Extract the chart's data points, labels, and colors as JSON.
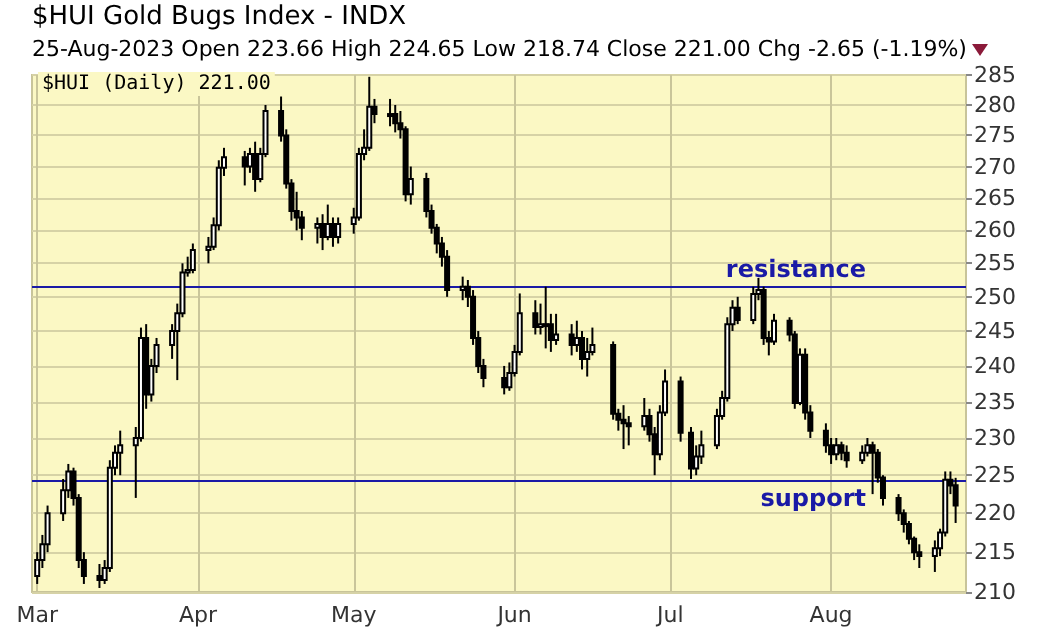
{
  "chart_data": {
    "type": "candlestick",
    "title": "$HUI Gold Bugs Index - INDX",
    "subtitle": "25-Aug-2023 Open 223.66 High 224.65 Low 218.74 Close 221.00 Chg -2.65 (-1.19%)",
    "annotations": [
      "$HUI (Daily) 221.00"
    ],
    "x": [
      "2023-03-01",
      "2023-03-02",
      "2023-03-03",
      "2023-03-06",
      "2023-03-07",
      "2023-03-08",
      "2023-03-09",
      "2023-03-10",
      "2023-03-13",
      "2023-03-14",
      "2023-03-15",
      "2023-03-16",
      "2023-03-17",
      "2023-03-20",
      "2023-03-21",
      "2023-03-22",
      "2023-03-23",
      "2023-03-24",
      "2023-03-27",
      "2023-03-28",
      "2023-03-29",
      "2023-03-30",
      "2023-03-31",
      "2023-04-03",
      "2023-04-04",
      "2023-04-05",
      "2023-04-06",
      "2023-04-10",
      "2023-04-11",
      "2023-04-12",
      "2023-04-13",
      "2023-04-14",
      "2023-04-17",
      "2023-04-18",
      "2023-04-19",
      "2023-04-20",
      "2023-04-21",
      "2023-04-24",
      "2023-04-25",
      "2023-04-26",
      "2023-04-27",
      "2023-04-28",
      "2023-05-01",
      "2023-05-02",
      "2023-05-03",
      "2023-05-04",
      "2023-05-05",
      "2023-05-08",
      "2023-05-09",
      "2023-05-10",
      "2023-05-11",
      "2023-05-12",
      "2023-05-15",
      "2023-05-16",
      "2023-05-17",
      "2023-05-18",
      "2023-05-19",
      "2023-05-22",
      "2023-05-23",
      "2023-05-24",
      "2023-05-25",
      "2023-05-26",
      "2023-05-30",
      "2023-05-31",
      "2023-06-01",
      "2023-06-02",
      "2023-06-05",
      "2023-06-06",
      "2023-06-07",
      "2023-06-08",
      "2023-06-09",
      "2023-06-12",
      "2023-06-13",
      "2023-06-14",
      "2023-06-15",
      "2023-06-16",
      "2023-06-20",
      "2023-06-21",
      "2023-06-22",
      "2023-06-23",
      "2023-06-26",
      "2023-06-27",
      "2023-06-28",
      "2023-06-29",
      "2023-06-30",
      "2023-07-03",
      "2023-07-05",
      "2023-07-06",
      "2023-07-07",
      "2023-07-10",
      "2023-07-11",
      "2023-07-12",
      "2023-07-13",
      "2023-07-14",
      "2023-07-17",
      "2023-07-18",
      "2023-07-19",
      "2023-07-20",
      "2023-07-21",
      "2023-07-24",
      "2023-07-25",
      "2023-07-26",
      "2023-07-27",
      "2023-07-28",
      "2023-07-31",
      "2023-08-01",
      "2023-08-02",
      "2023-08-03",
      "2023-08-04",
      "2023-08-07",
      "2023-08-08",
      "2023-08-09",
      "2023-08-10",
      "2023-08-11",
      "2023-08-14",
      "2023-08-15",
      "2023-08-16",
      "2023-08-17",
      "2023-08-18",
      "2023-08-21",
      "2023-08-22",
      "2023-08-23",
      "2023-08-24",
      "2023-08-25"
    ],
    "xlim": [
      "2023-02-28",
      "2023-08-27"
    ],
    "xticks": [
      {
        "value": "2023-03-01",
        "label": "Mar"
      },
      {
        "value": "2023-04-01",
        "label": "Apr"
      },
      {
        "value": "2023-05-01",
        "label": "May"
      },
      {
        "value": "2023-06-01",
        "label": "Jun"
      },
      {
        "value": "2023-07-01",
        "label": "Jul"
      },
      {
        "value": "2023-08-01",
        "label": "Aug"
      }
    ],
    "ohlc": [
      [
        212,
        215,
        211,
        214
      ],
      [
        214,
        217.2,
        213,
        216
      ],
      [
        216,
        221,
        215,
        220
      ],
      [
        220,
        224.5,
        219,
        223
      ],
      [
        223,
        226.5,
        222,
        225.5
      ],
      [
        225.5,
        226,
        221,
        222
      ],
      [
        222,
        222.5,
        213,
        214
      ],
      [
        214,
        215,
        211,
        212
      ],
      [
        212,
        213.5,
        210.5,
        211.5
      ],
      [
        211.5,
        214,
        211,
        213
      ],
      [
        213,
        227,
        212.5,
        226
      ],
      [
        226,
        229,
        225,
        228
      ],
      [
        228,
        231,
        225,
        229
      ],
      [
        229,
        231.5,
        222,
        230
      ],
      [
        230,
        245.5,
        229.5,
        244
      ],
      [
        244,
        246,
        234,
        236
      ],
      [
        236,
        241,
        235,
        240
      ],
      [
        240,
        244,
        239,
        243
      ],
      [
        243,
        246,
        241,
        245
      ],
      [
        245,
        249,
        238,
        247.6
      ],
      [
        247.6,
        255,
        247,
        253.6
      ],
      [
        253.6,
        256,
        253,
        254
      ],
      [
        254,
        258,
        253.5,
        257
      ],
      [
        257,
        259,
        255,
        257.5
      ],
      [
        257.5,
        262,
        257,
        260.8
      ],
      [
        260.8,
        271,
        260,
        269.8
      ],
      [
        269.8,
        273,
        268.5,
        271.5
      ],
      [
        271.5,
        272.5,
        267,
        270
      ],
      [
        270,
        273,
        269,
        272
      ],
      [
        272,
        274,
        266,
        268
      ],
      [
        268,
        273,
        267.5,
        272
      ],
      [
        272,
        280,
        271.5,
        279
      ],
      [
        279,
        281.4,
        274,
        275
      ],
      [
        275,
        276,
        266.5,
        267.3
      ],
      [
        267.3,
        268,
        261.5,
        263
      ],
      [
        263,
        266,
        260,
        262
      ],
      [
        262,
        263,
        258.5,
        260.4
      ],
      [
        260.4,
        262,
        258,
        261
      ],
      [
        261,
        262.5,
        257,
        259
      ],
      [
        259,
        264,
        258.5,
        261
      ],
      [
        261,
        262,
        257.5,
        259
      ],
      [
        259,
        262,
        258,
        261
      ],
      [
        261,
        263.5,
        259.5,
        262
      ],
      [
        262,
        273,
        261.5,
        272
      ],
      [
        272,
        276,
        271,
        273
      ],
      [
        273,
        284.7,
        272.5,
        279.7
      ],
      [
        279.7,
        281,
        277,
        278.5
      ],
      [
        278.5,
        281,
        276.5,
        278.5
      ],
      [
        278.5,
        280,
        275.5,
        277
      ],
      [
        277,
        279,
        274.5,
        276
      ],
      [
        276,
        276.5,
        264.5,
        265.6
      ],
      [
        265.6,
        270,
        264,
        268
      ],
      [
        268,
        269,
        262,
        263
      ],
      [
        263,
        264,
        259.5,
        260.4
      ],
      [
        260.4,
        261,
        256.5,
        258
      ],
      [
        258,
        259,
        254.5,
        256
      ],
      [
        256,
        257,
        250,
        251
      ],
      [
        251,
        253,
        249.5,
        251.5
      ],
      [
        251.5,
        252.5,
        248.5,
        250
      ],
      [
        250,
        251,
        243,
        244
      ],
      [
        244,
        245,
        239,
        240
      ],
      [
        240,
        241,
        237,
        238.3
      ],
      [
        238.3,
        240,
        236,
        237
      ],
      [
        237,
        240.5,
        236.5,
        239
      ],
      [
        239,
        243,
        238.5,
        242
      ],
      [
        242,
        250.5,
        241.5,
        247.6
      ],
      [
        247.6,
        249.5,
        244.5,
        245.6
      ],
      [
        245.6,
        249,
        244.5,
        246
      ],
      [
        246,
        251.5,
        242.5,
        246
      ],
      [
        246,
        247.5,
        242,
        243.7
      ],
      [
        243.7,
        247.5,
        243,
        244.5
      ],
      [
        244.5,
        246,
        241.5,
        243
      ],
      [
        243,
        246.5,
        242,
        244
      ],
      [
        244,
        245,
        239.5,
        241
      ],
      [
        241,
        244,
        238.5,
        242
      ],
      [
        242,
        245.5,
        241.5,
        243
      ],
      [
        243,
        243.5,
        232.5,
        233.3
      ],
      [
        233.3,
        234,
        231,
        232.5
      ],
      [
        232.5,
        234.5,
        228.5,
        232
      ],
      [
        232,
        233,
        229,
        231.6
      ],
      [
        231.6,
        235.5,
        231,
        233
      ],
      [
        233,
        234,
        229.5,
        230.5
      ],
      [
        230.5,
        231.5,
        225,
        227.8
      ],
      [
        227.8,
        234.5,
        227,
        233.5
      ],
      [
        233.5,
        239.5,
        233,
        237.8
      ],
      [
        237.8,
        238.5,
        229.5,
        230.7
      ],
      [
        230.7,
        231.5,
        224.5,
        225.9
      ],
      [
        225.9,
        229,
        225,
        227.5
      ],
      [
        227.5,
        231,
        226.5,
        229
      ],
      [
        229,
        234,
        228.5,
        233
      ],
      [
        233,
        236.5,
        232.5,
        235.5
      ],
      [
        235.5,
        247,
        235,
        246
      ],
      [
        246,
        249.5,
        245,
        248.4
      ],
      [
        248.4,
        250,
        246,
        246.6
      ],
      [
        246.6,
        251.5,
        246,
        250.4
      ],
      [
        250.4,
        252.8,
        249.5,
        251
      ],
      [
        251,
        251.5,
        243,
        244
      ],
      [
        244,
        245,
        241.5,
        243.5
      ],
      [
        243.5,
        247.5,
        243,
        246.5
      ],
      [
        246.5,
        247,
        243.5,
        244.5
      ],
      [
        244.5,
        245,
        234,
        234.8
      ],
      [
        234.8,
        242.5,
        234.5,
        241.6
      ],
      [
        241.6,
        242.5,
        232.5,
        233.5
      ],
      [
        233.5,
        234.5,
        230,
        231
      ],
      [
        231,
        232,
        228,
        229
      ],
      [
        229,
        230,
        226.5,
        227.8
      ],
      [
        227.8,
        230,
        227,
        229
      ],
      [
        229,
        229.5,
        227,
        228
      ],
      [
        228,
        229,
        226,
        227
      ],
      [
        227,
        229,
        226.5,
        228
      ],
      [
        228,
        230,
        227.5,
        229
      ],
      [
        229,
        229.5,
        222.5,
        228
      ],
      [
        228,
        228.5,
        224,
        224.7
      ],
      [
        224.7,
        225,
        221,
        222
      ],
      [
        222,
        222.5,
        219,
        220
      ],
      [
        220,
        220.5,
        217.5,
        218.6
      ],
      [
        218.6,
        219,
        216,
        216.7
      ],
      [
        216.7,
        217,
        214,
        215
      ],
      [
        215,
        216,
        213,
        214.5
      ],
      [
        214.5,
        216.5,
        212.5,
        215.5
      ],
      [
        215.5,
        218,
        214.5,
        217.5
      ],
      [
        217.5,
        225.5,
        217,
        224.4
      ],
      [
        224.4,
        225.5,
        222.5,
        223.65
      ],
      [
        223.66,
        224.65,
        218.74,
        221.0
      ]
    ],
    "color": "#000000",
    "ylim": [
      210,
      285
    ],
    "yticks": [
      210,
      215,
      220,
      225,
      230,
      235,
      240,
      245,
      250,
      255,
      260,
      265,
      270,
      275,
      280,
      285
    ],
    "log": "y",
    "grid": true,
    "ref_lines": [
      {
        "axis": "y",
        "value": 251.5,
        "label": "resistance",
        "color": "#1a1aa6"
      },
      {
        "axis": "y",
        "value": 224.4,
        "label": "support",
        "color": "#1a1aa6"
      }
    ]
  }
}
